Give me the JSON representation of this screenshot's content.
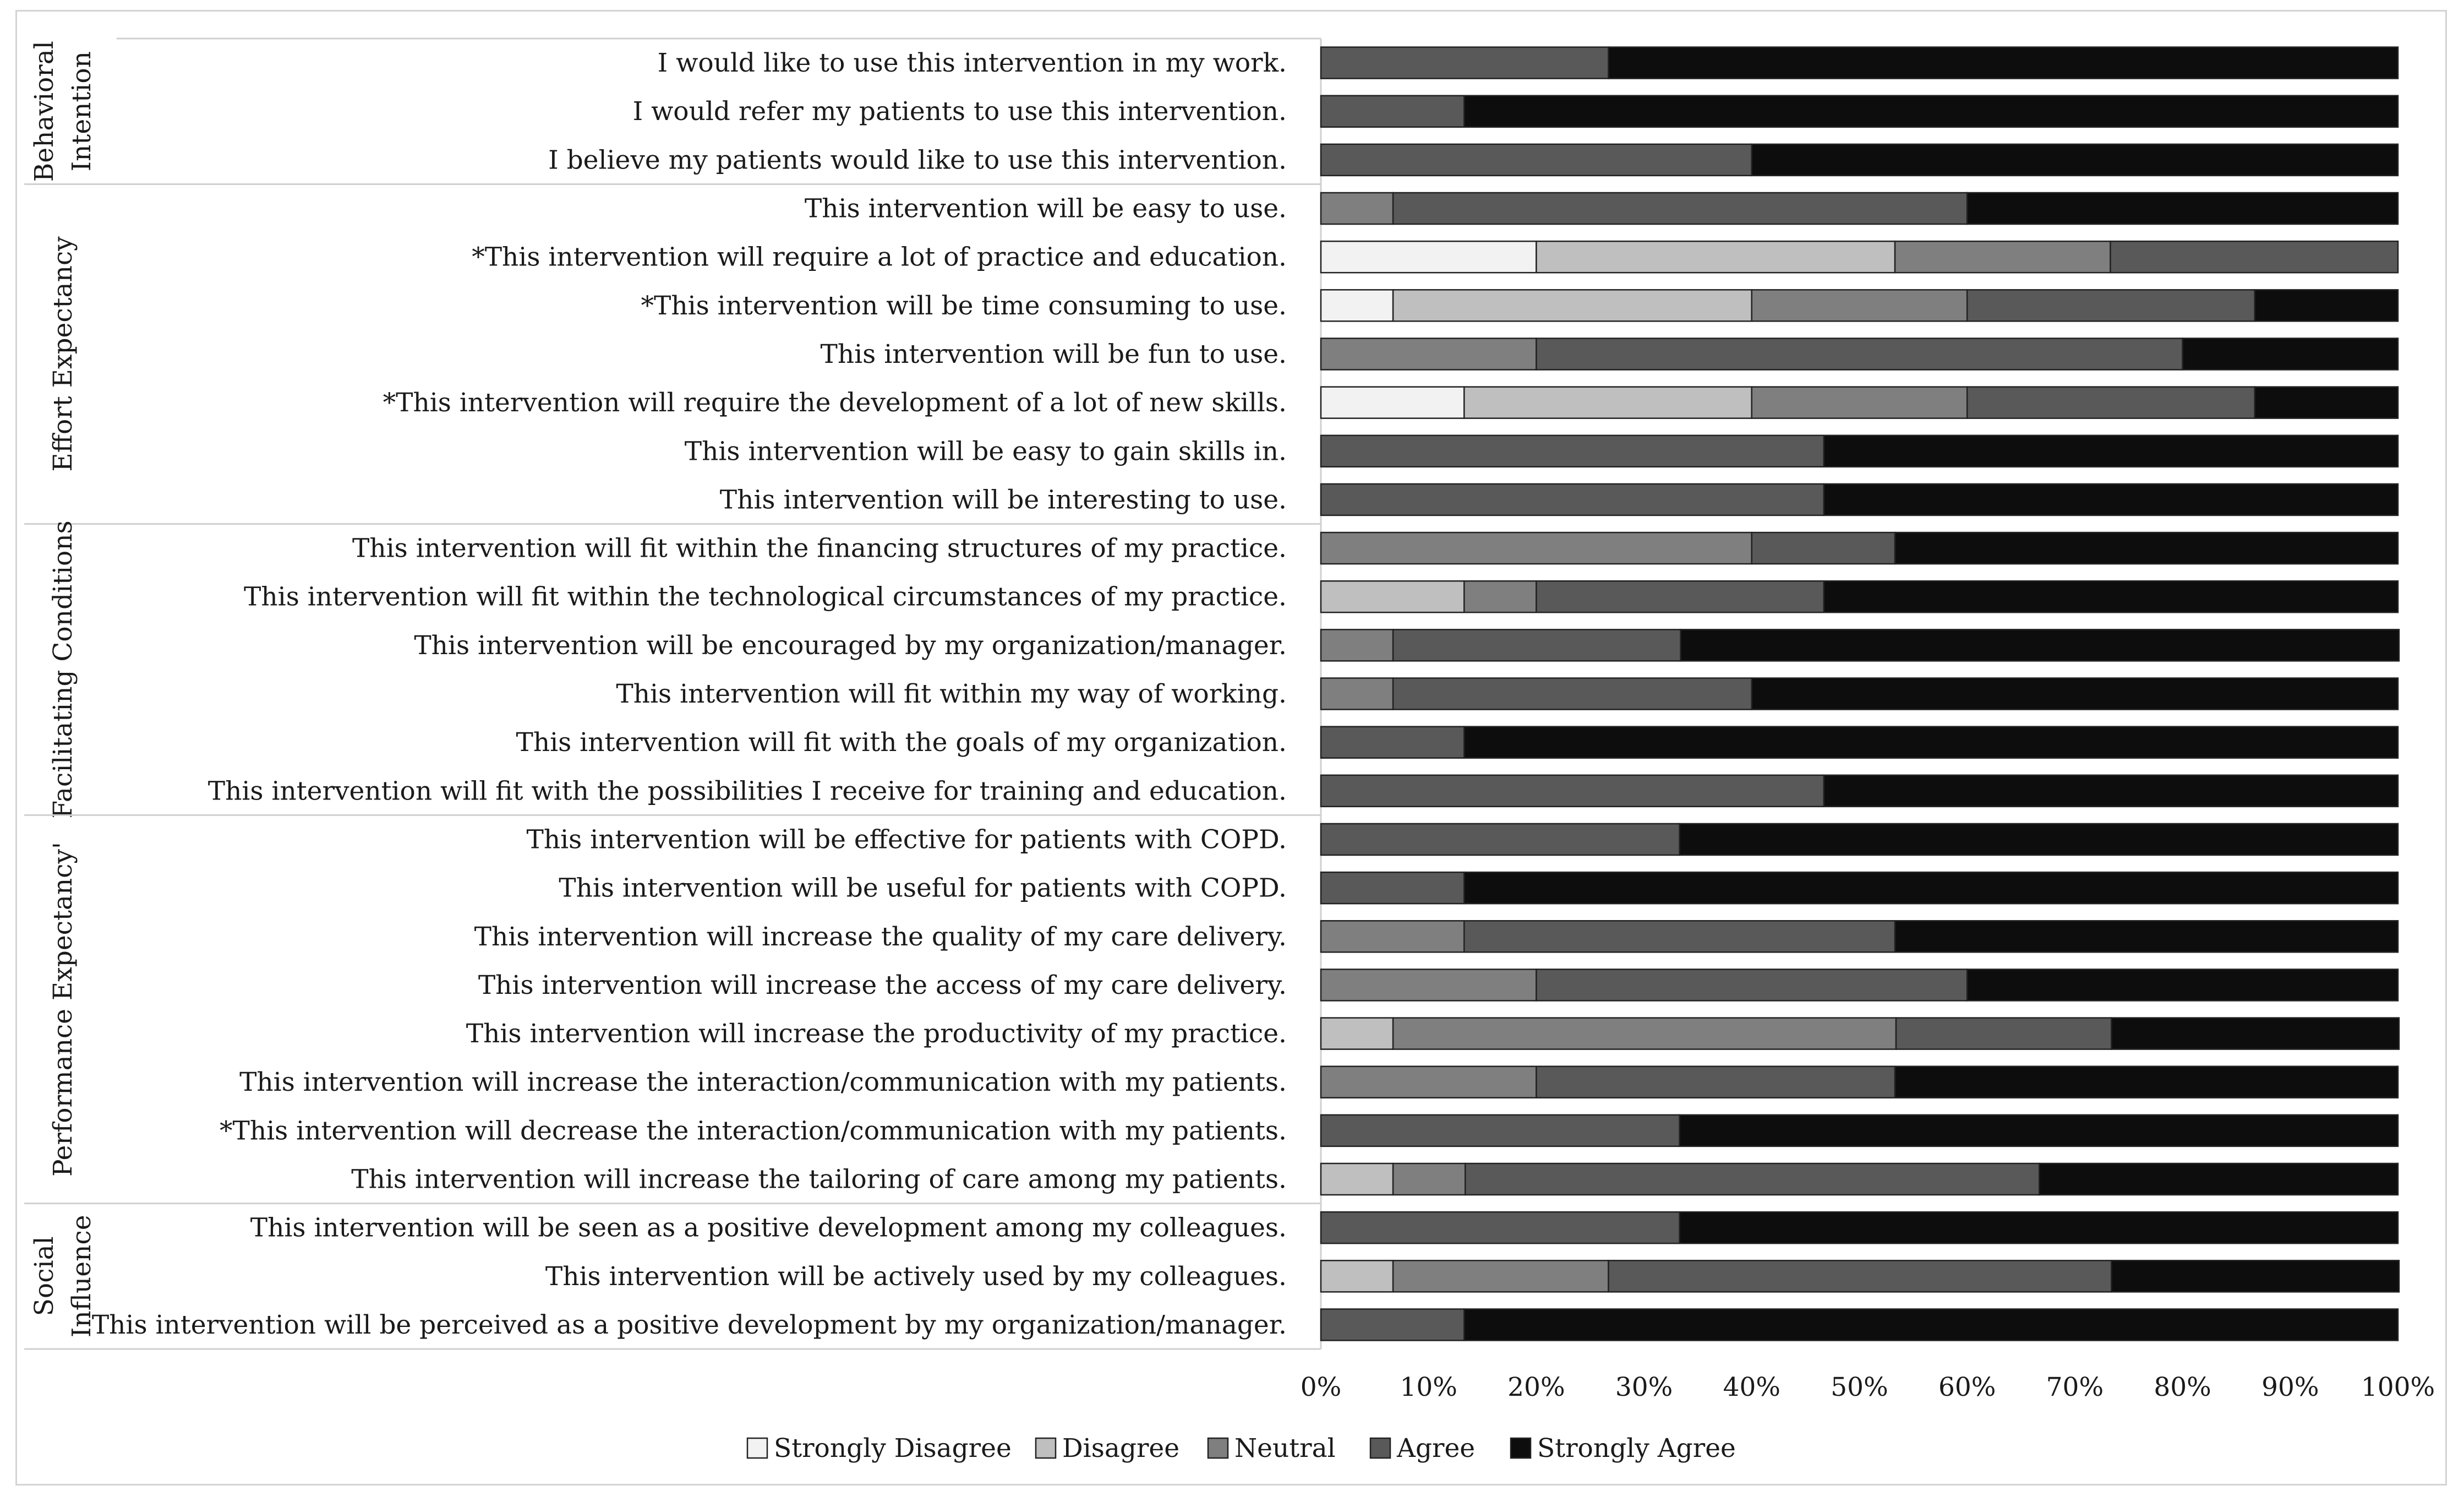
{
  "chart_data": {
    "type": "bar",
    "orientation": "horizontal",
    "stacked": "percent",
    "xlabel": "",
    "ylabel": "",
    "xlim": [
      0,
      100
    ],
    "grid": false,
    "legend_position": "bottom",
    "x_ticks": [
      "0%",
      "10%",
      "20%",
      "30%",
      "40%",
      "50%",
      "60%",
      "70%",
      "80%",
      "90%",
      "100%"
    ],
    "series": [
      {
        "name": "Strongly Disagree",
        "color": "#f2f2f2"
      },
      {
        "name": "Disagree",
        "color": "#bfbfbf"
      },
      {
        "name": "Neutral",
        "color": "#7f7f7f"
      },
      {
        "name": "Agree",
        "color": "#595959"
      },
      {
        "name": "Strongly Agree",
        "color": "#0d0d0d"
      }
    ],
    "groups": [
      {
        "label_lines": [
          "Behavioral",
          "Intention"
        ],
        "start": 0,
        "end": 2
      },
      {
        "label_lines": [
          "Effort Expectancy"
        ],
        "start": 3,
        "end": 9
      },
      {
        "label_lines": [
          "Facilitating Conditions"
        ],
        "start": 10,
        "end": 15
      },
      {
        "label_lines": [
          "Performance Expectancy'"
        ],
        "start": 16,
        "end": 23
      },
      {
        "label_lines": [
          "Social",
          "Influence"
        ],
        "start": 24,
        "end": 26
      }
    ],
    "categories": [
      {
        "label": "I would like to use this intervention in my work.",
        "values": [
          0,
          0,
          0,
          26.7,
          73.3
        ]
      },
      {
        "label": "I would refer my patients to use this intervention.",
        "values": [
          0,
          0,
          0,
          13.3,
          86.7
        ]
      },
      {
        "label": "I believe my patients would like to use this intervention.",
        "values": [
          0,
          0,
          0,
          40,
          60
        ]
      },
      {
        "label": "This intervention will be easy to use.",
        "values": [
          0,
          0,
          6.7,
          53.3,
          40
        ]
      },
      {
        "label": "*This intervention will require a lot of practice and education.",
        "values": [
          20,
          33.3,
          20,
          26.7,
          0
        ]
      },
      {
        "label": "*This intervention will be time consuming to use.",
        "values": [
          6.7,
          33.3,
          20,
          26.7,
          13.3
        ]
      },
      {
        "label": "This intervention will be fun to use.",
        "values": [
          0,
          0,
          20,
          60,
          20
        ]
      },
      {
        "label": "*This intervention will require the development of a lot of new skills.",
        "values": [
          13.3,
          26.7,
          20,
          26.7,
          13.3
        ]
      },
      {
        "label": "This intervention will be easy to gain skills in.",
        "values": [
          0,
          0,
          0,
          46.7,
          53.3
        ]
      },
      {
        "label": "This intervention will be interesting to use.",
        "values": [
          0,
          0,
          0,
          46.7,
          53.3
        ]
      },
      {
        "label": "This intervention will fit within the financing structures of my practice.",
        "values": [
          0,
          0,
          40,
          13.3,
          46.7
        ]
      },
      {
        "label": "This intervention will fit within the technological circumstances of my practice.",
        "values": [
          0,
          13.3,
          6.7,
          26.7,
          53.3
        ]
      },
      {
        "label": "This intervention will be encouraged by my organization/manager.",
        "values": [
          0,
          0,
          6.7,
          26.7,
          66.7
        ]
      },
      {
        "label": "This intervention will fit within my way of working.",
        "values": [
          0,
          0,
          6.7,
          33.3,
          60
        ]
      },
      {
        "label": "This intervention will fit with the goals of my organization.",
        "values": [
          0,
          0,
          0,
          13.3,
          86.7
        ]
      },
      {
        "label": "This intervention will fit with the possibilities I receive for training and education.",
        "values": [
          0,
          0,
          0,
          46.7,
          53.3
        ]
      },
      {
        "label": "This intervention will be effective for patients with COPD.",
        "values": [
          0,
          0,
          0,
          33.3,
          66.7
        ]
      },
      {
        "label": "This intervention will be useful for patients with COPD.",
        "values": [
          0,
          0,
          0,
          13.3,
          86.7
        ]
      },
      {
        "label": "This intervention will increase the quality of my care delivery.",
        "values": [
          0,
          0,
          13.3,
          40,
          46.7
        ]
      },
      {
        "label": "This intervention will increase the access of my care delivery.",
        "values": [
          0,
          0,
          20,
          40,
          40
        ]
      },
      {
        "label": "This intervention will increase the productivity of my practice.",
        "values": [
          0,
          6.7,
          46.7,
          20,
          26.7
        ]
      },
      {
        "label": "This intervention will increase the interaction/communication with my patients.",
        "values": [
          0,
          0,
          20,
          33.3,
          46.7
        ]
      },
      {
        "label": "*This intervention will decrease the interaction/communication with my patients.",
        "values": [
          0,
          0,
          0,
          33.3,
          66.7
        ]
      },
      {
        "label": "This intervention will increase the tailoring of care among my patients.",
        "values": [
          0,
          6.7,
          6.7,
          53.3,
          33.3
        ]
      },
      {
        "label": "This intervention will be seen as a positive development among my colleagues.",
        "values": [
          0,
          0,
          0,
          33.3,
          66.7
        ]
      },
      {
        "label": "This intervention will be actively used by my colleagues.",
        "values": [
          0,
          6.7,
          20,
          46.7,
          26.7
        ]
      },
      {
        "label": "This intervention will be perceived as a positive development by my organization/manager.",
        "values": [
          0,
          0,
          0,
          13.3,
          86.7
        ]
      }
    ]
  }
}
